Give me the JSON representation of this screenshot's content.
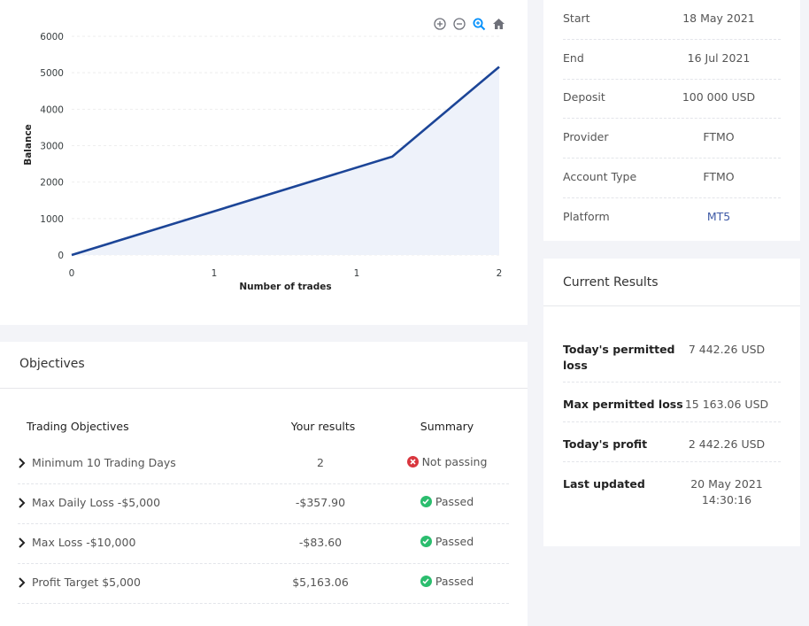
{
  "chart_data": {
    "type": "area",
    "x": [
      0,
      1.5,
      2
    ],
    "y": [
      0,
      2700,
      5163.06
    ],
    "xlabel": "Number of trades",
    "ylabel": "Balance",
    "ylim": [
      0,
      6000
    ],
    "xlim": [
      0,
      2
    ],
    "yticks": [
      0,
      1000,
      2000,
      3000,
      4000,
      5000,
      6000
    ],
    "xtick_labels": [
      "0",
      "1",
      "1",
      "2"
    ],
    "grid": true,
    "line_color": "#1c4597",
    "fill_color": "#eef2fa"
  },
  "toolbar": {
    "zoom_in": "zoom-in-icon",
    "zoom_out": "zoom-out-icon",
    "zoom_select": "magnifier-icon",
    "reset": "home-icon"
  },
  "info": [
    {
      "label": "Start",
      "value": "18 May 2021"
    },
    {
      "label": "End",
      "value": "16 Jul 2021"
    },
    {
      "label": "Deposit",
      "value": "100 000 USD"
    },
    {
      "label": "Provider",
      "value": "FTMO"
    },
    {
      "label": "Account Type",
      "value": "FTMO"
    },
    {
      "label": "Platform",
      "value": "MT5"
    }
  ],
  "results": {
    "title": "Current Results",
    "rows": [
      {
        "label_line1": "Today's permitted",
        "label_line2": "loss",
        "value_line1": "7 442.26 USD",
        "value_line2": ""
      },
      {
        "label_line1": "Max permitted loss",
        "label_line2": "",
        "value_line1": "15 163.06 USD",
        "value_line2": ""
      },
      {
        "label_line1": "Today's profit",
        "label_line2": "",
        "value_line1": "2 442.26 USD",
        "value_line2": ""
      },
      {
        "label_line1": "Last updated",
        "label_line2": "",
        "value_line1": "20 May 2021",
        "value_line2": "14:30:16"
      }
    ]
  },
  "objectives": {
    "title": "Objectives",
    "headers": {
      "objective": "Trading Objectives",
      "result": "Your results",
      "summary": "Summary"
    },
    "rows": [
      {
        "name": "Minimum 10 Trading Days",
        "result": "2",
        "status": "Not passing",
        "status_color": "#d9363e"
      },
      {
        "name": "Max Daily Loss -$5,000",
        "result": "-$357.90",
        "status": "Passed",
        "status_color": "#2bbd6e"
      },
      {
        "name": "Max Loss -$10,000",
        "result": "-$83.60",
        "status": "Passed",
        "status_color": "#2bbd6e"
      },
      {
        "name": "Profit Target $5,000",
        "result": "$5,163.06",
        "status": "Passed",
        "status_color": "#2bbd6e"
      }
    ]
  }
}
